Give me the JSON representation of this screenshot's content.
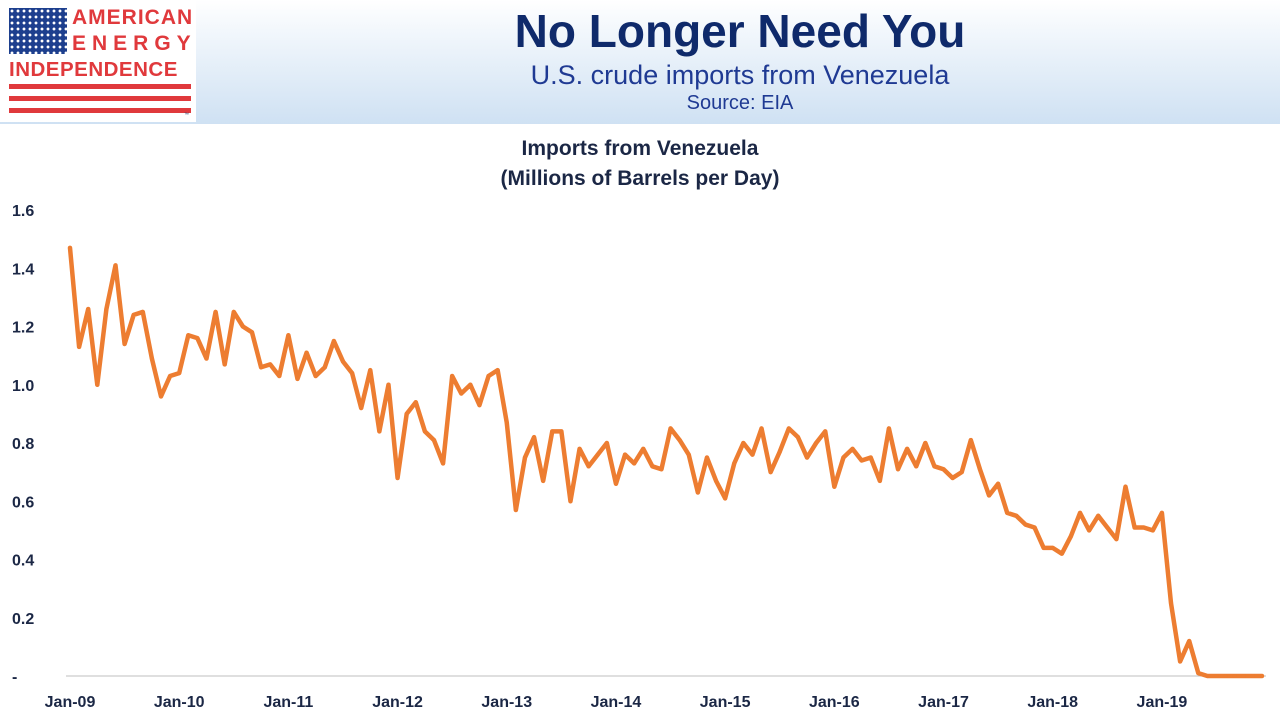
{
  "logo": {
    "line1": "AMERICAN",
    "line2": "ENERGY",
    "line3": "INDEPENDENCE",
    "tm": "™",
    "colors": {
      "red": "#e0393c",
      "blue": "#1d3f8e"
    }
  },
  "header": {
    "title": "No Longer Need You",
    "subtitle": "U.S. crude imports from Venezuela",
    "source": "Source: EIA"
  },
  "chart_data": {
    "type": "line",
    "title_line1": "Imports from Venezuela",
    "title_line2": "(Millions of Barrels per Day)",
    "xlabel": "",
    "ylabel": "",
    "ylim": [
      0,
      1.6
    ],
    "y_ticks": [
      {
        "value": 0,
        "label": "-"
      },
      {
        "value": 0.2,
        "label": "0.2"
      },
      {
        "value": 0.4,
        "label": "0.4"
      },
      {
        "value": 0.6,
        "label": "0.6"
      },
      {
        "value": 0.8,
        "label": "0.8"
      },
      {
        "value": 1.0,
        "label": "1.0"
      },
      {
        "value": 1.2,
        "label": "1.2"
      },
      {
        "value": 1.4,
        "label": "1.4"
      },
      {
        "value": 1.6,
        "label": "1.6"
      }
    ],
    "x_ticks": [
      "Jan-09",
      "Jan-10",
      "Jan-11",
      "Jan-12",
      "Jan-13",
      "Jan-14",
      "Jan-15",
      "Jan-16",
      "Jan-17",
      "Jan-18",
      "Jan-19"
    ],
    "x_start": "Jan-09",
    "grid": false,
    "line_color": "#ed7d31",
    "series": [
      {
        "values": [
          1.47,
          1.13,
          1.26,
          1.0,
          1.26,
          1.41,
          1.14,
          1.24,
          1.25,
          1.09,
          0.96,
          1.03,
          1.04,
          1.17,
          1.16,
          1.09,
          1.25,
          1.07,
          1.25,
          1.2,
          1.18,
          1.06,
          1.07,
          1.03,
          1.17,
          1.02,
          1.11,
          1.03,
          1.06,
          1.15,
          1.08,
          1.04,
          0.92,
          1.05,
          0.84,
          1.0,
          0.68,
          0.9,
          0.94,
          0.84,
          0.81,
          0.73,
          1.03,
          0.97,
          1.0,
          0.93,
          1.03,
          1.05,
          0.87,
          0.57,
          0.75,
          0.82,
          0.67,
          0.84,
          0.84,
          0.6,
          0.78,
          0.72,
          0.76,
          0.8,
          0.66,
          0.76,
          0.73,
          0.78,
          0.72,
          0.71,
          0.85,
          0.81,
          0.76,
          0.63,
          0.75,
          0.67,
          0.61,
          0.73,
          0.8,
          0.76,
          0.85,
          0.7,
          0.77,
          0.85,
          0.82,
          0.75,
          0.8,
          0.84,
          0.65,
          0.75,
          0.78,
          0.74,
          0.75,
          0.67,
          0.85,
          0.71,
          0.78,
          0.72,
          0.8,
          0.72,
          0.71,
          0.68,
          0.7,
          0.81,
          0.71,
          0.62,
          0.66,
          0.56,
          0.55,
          0.52,
          0.51,
          0.44,
          0.44,
          0.42,
          0.48,
          0.56,
          0.5,
          0.55,
          0.51,
          0.47,
          0.65,
          0.51,
          0.51,
          0.5,
          0.56,
          0.25,
          0.05,
          0.12,
          0.01,
          0.0,
          0.0,
          0.0,
          0.0,
          0.0,
          0.0,
          0.0
        ]
      }
    ]
  }
}
